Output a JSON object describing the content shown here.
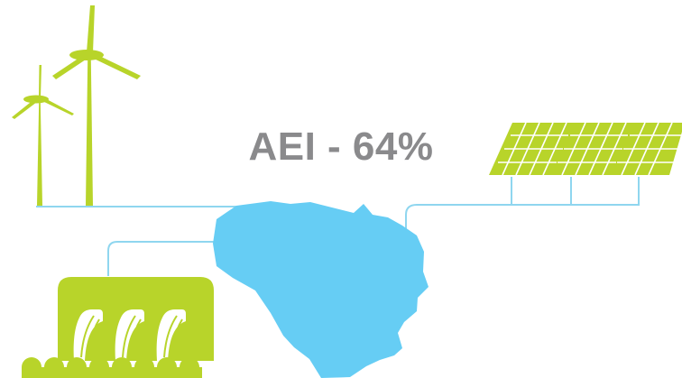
{
  "headline": "AEI - 64%",
  "colors": {
    "accent_green": "#b8d42a",
    "map_blue": "#66cdf4",
    "line_blue": "#8fd6ef",
    "text_gray": "#8a8a8c"
  },
  "icons": [
    "wind-turbine-icon",
    "solar-panel-icon",
    "hydro-dam-icon",
    "country-map-icon"
  ]
}
